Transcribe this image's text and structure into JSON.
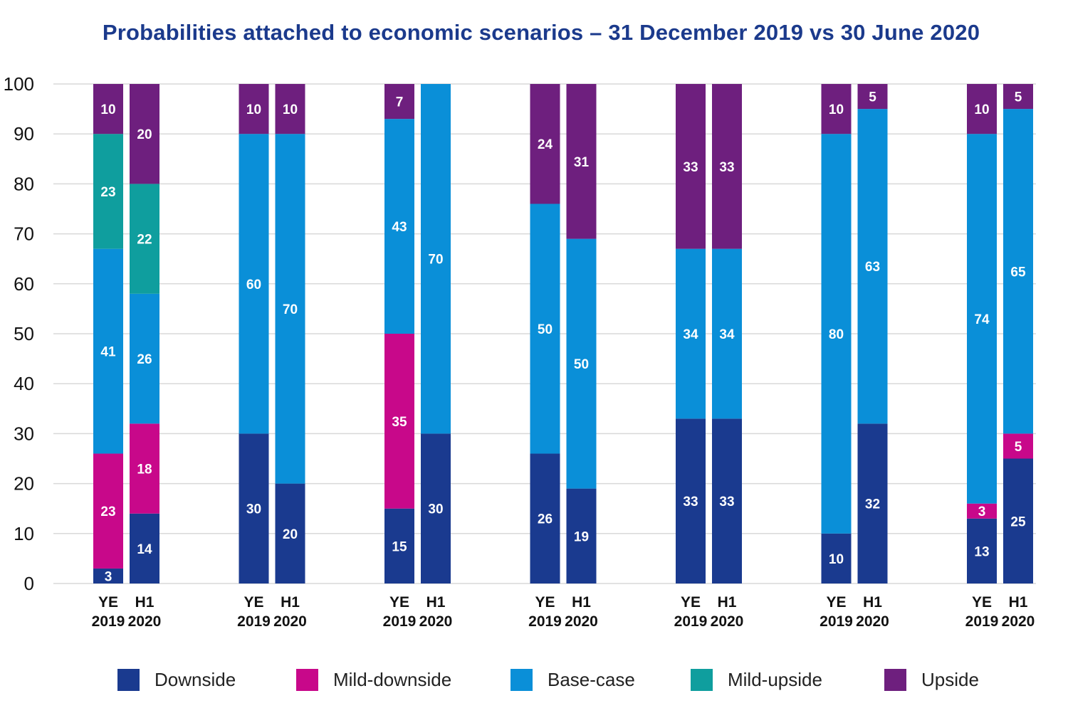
{
  "title": "Probabilities attached to economic scenarios – 31 December 2019 vs 30 June 2020",
  "chart_data": {
    "type": "bar",
    "stacked": true,
    "title": "Probabilities attached to economic scenarios – 31 December 2019 vs 30 June 2020",
    "xlabel": "",
    "ylabel": "",
    "ylim": [
      0,
      100
    ],
    "yticks": [
      0,
      10,
      20,
      30,
      40,
      50,
      60,
      70,
      80,
      90,
      100
    ],
    "grid": true,
    "legend_position": "bottom",
    "period_labels": [
      [
        "YE",
        "2019"
      ],
      [
        "H1",
        "2020"
      ]
    ],
    "groups": 7,
    "categories": [
      "G1 YE 2019",
      "G1 H1 2020",
      "G2 YE 2019",
      "G2 H1 2020",
      "G3 YE 2019",
      "G3 H1 2020",
      "G4 YE 2019",
      "G4 H1 2020",
      "G5 YE 2019",
      "G5 H1 2020",
      "G6 YE 2019",
      "G6 H1 2020",
      "G7 YE 2019",
      "G7 H1 2020"
    ],
    "series": [
      {
        "name": "Downside",
        "color": "#1a3a8f",
        "values": [
          3,
          14,
          30,
          20,
          15,
          30,
          26,
          19,
          33,
          33,
          10,
          32,
          13,
          25
        ]
      },
      {
        "name": "Mild-downside",
        "color": "#c8088a",
        "values": [
          23,
          18,
          0,
          0,
          35,
          0,
          0,
          0,
          0,
          0,
          0,
          0,
          3,
          5
        ]
      },
      {
        "name": "Base-case",
        "color": "#0a8fd8",
        "values": [
          41,
          26,
          60,
          70,
          43,
          70,
          50,
          50,
          34,
          34,
          80,
          63,
          74,
          65
        ]
      },
      {
        "name": "Mild-upside",
        "color": "#0f9e9e",
        "values": [
          23,
          22,
          0,
          0,
          0,
          0,
          0,
          0,
          0,
          0,
          0,
          0,
          0,
          0
        ]
      },
      {
        "name": "Upside",
        "color": "#6e1f7e",
        "values": [
          10,
          20,
          10,
          10,
          7,
          0,
          24,
          31,
          33,
          33,
          10,
          5,
          10,
          5
        ]
      }
    ]
  }
}
